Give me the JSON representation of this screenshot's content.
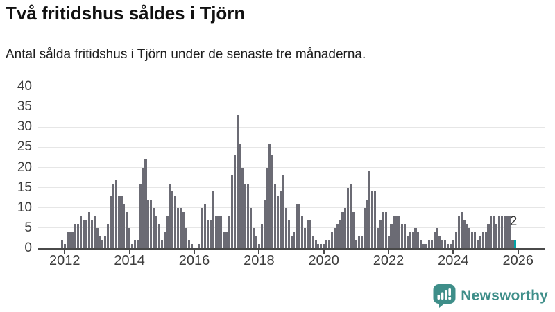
{
  "header": {
    "title": "Två fritidshus såldes i Tjörn",
    "subtitle": "Antal sålda fritidshus i Tjörn under de senaste tre månaderna."
  },
  "chart_data": {
    "type": "bar",
    "title": "Två fritidshus såldes i Tjörn",
    "subtitle": "Antal sålda fritidshus i Tjörn under de senaste tre månaderna.",
    "frequency": "monthly",
    "start_month": "2011-12",
    "x_ticks": [
      "2012",
      "2014",
      "2016",
      "2018",
      "2020",
      "2022",
      "2024",
      "2026"
    ],
    "y_ticks": [
      0,
      5,
      10,
      15,
      20,
      25,
      30,
      35,
      40
    ],
    "ylim": [
      0,
      40
    ],
    "grid": true,
    "bar_color": "#6b6b74",
    "values": [
      2,
      1,
      4,
      4,
      4,
      6,
      6,
      8,
      7,
      7,
      9,
      7,
      8,
      5,
      3,
      2,
      3,
      6,
      13,
      16,
      17,
      13,
      13,
      11,
      9,
      5,
      1,
      2,
      2,
      16,
      20,
      22,
      12,
      12,
      10,
      8,
      6,
      2,
      4,
      8,
      16,
      14,
      13,
      10,
      10,
      9,
      5,
      2,
      1,
      0,
      0,
      1,
      10,
      11,
      7,
      7,
      14,
      8,
      8,
      8,
      4,
      4,
      8,
      18,
      23,
      33,
      26,
      20,
      16,
      16,
      10,
      5,
      3,
      1,
      6,
      12,
      20,
      26,
      23,
      16,
      13,
      14,
      18,
      10,
      7,
      3,
      4,
      11,
      11,
      8,
      5,
      7,
      7,
      3,
      2,
      1,
      1,
      1,
      2,
      2,
      4,
      5,
      6,
      7,
      9,
      10,
      15,
      16,
      9,
      2,
      3,
      3,
      10,
      12,
      19,
      14,
      14,
      5,
      7,
      9,
      9,
      3,
      6,
      8,
      8,
      8,
      6,
      6,
      3,
      4,
      4,
      5,
      4,
      2,
      1,
      1,
      2,
      2,
      4,
      5,
      3,
      2,
      2,
      1,
      1,
      2,
      4,
      8,
      9,
      7,
      6,
      5,
      4,
      4,
      2,
      3,
      4,
      4,
      6,
      8,
      8,
      6,
      8,
      8,
      8,
      8,
      8,
      2,
      2
    ],
    "highlight": {
      "position": "last",
      "value_label": "2",
      "color": "#00a3a6"
    }
  },
  "footer": {
    "brand": "Newsworthy",
    "brand_color": "#3e8e89"
  }
}
